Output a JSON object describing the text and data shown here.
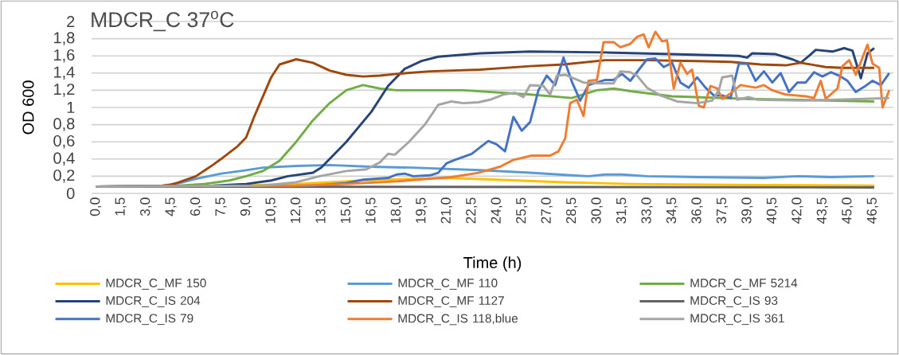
{
  "chart_data": {
    "type": "line",
    "title": "MDCR_C 37$^{o}$C",
    "xlabel": "Time (h)",
    "ylabel": "OD 600",
    "xlim": [
      -0.25,
      47.75
    ],
    "ylim": [
      0,
      2
    ],
    "xticks": [
      {
        "value": 0,
        "label": "0,0"
      },
      {
        "value": 1.5,
        "label": "1,5"
      },
      {
        "value": 3,
        "label": "3,0"
      },
      {
        "value": 4.5,
        "label": "4,5"
      },
      {
        "value": 6,
        "label": "6,0"
      },
      {
        "value": 7.5,
        "label": "7,5"
      },
      {
        "value": 9,
        "label": "9,0"
      },
      {
        "value": 10.5,
        "label": "10,5"
      },
      {
        "value": 12,
        "label": "12,0"
      },
      {
        "value": 13.5,
        "label": "13,5"
      },
      {
        "value": 15,
        "label": "15,0"
      },
      {
        "value": 16.5,
        "label": "16,5"
      },
      {
        "value": 18,
        "label": "18,0"
      },
      {
        "value": 19.5,
        "label": "19,5"
      },
      {
        "value": 21,
        "label": "21,0"
      },
      {
        "value": 22.5,
        "label": "22,5"
      },
      {
        "value": 24,
        "label": "24,0"
      },
      {
        "value": 25.5,
        "label": "25,5"
      },
      {
        "value": 27,
        "label": "27,0"
      },
      {
        "value": 28.5,
        "label": "28,5"
      },
      {
        "value": 30,
        "label": "30,0"
      },
      {
        "value": 31.5,
        "label": "31,5"
      },
      {
        "value": 33,
        "label": "33,0"
      },
      {
        "value": 34.5,
        "label": "34,5"
      },
      {
        "value": 36,
        "label": "36,0"
      },
      {
        "value": 37.5,
        "label": "37,5"
      },
      {
        "value": 39,
        "label": "39,0"
      },
      {
        "value": 40.5,
        "label": "40,5"
      },
      {
        "value": 42,
        "label": "42,0"
      },
      {
        "value": 43.5,
        "label": "43,5"
      },
      {
        "value": 45,
        "label": "45,0"
      },
      {
        "value": 46.5,
        "label": "46,5"
      }
    ],
    "yticks": [
      0,
      {
        "value": 0.2,
        "label": "0,2"
      },
      {
        "value": 0.4,
        "label": "0,4"
      },
      {
        "value": 0.6,
        "label": "0,6"
      },
      {
        "value": 0.8,
        "label": "0,8"
      },
      1,
      {
        "value": 1.2,
        "label": "1,2"
      },
      {
        "value": 1.4,
        "label": "1,4"
      },
      {
        "value": 1.6,
        "label": "1,6"
      },
      {
        "value": 1.8,
        "label": "1,8"
      },
      2
    ],
    "grid": "y",
    "legend": "bottom",
    "marker": "none",
    "line_style": "solid",
    "series": [
      {
        "name": "MDCR_C_MF 150",
        "color": "#ffc000",
        "x": [
          0,
          8,
          12,
          16,
          19,
          21,
          24,
          28,
          32,
          38,
          46.6
        ],
        "values": [
          0.08,
          0.09,
          0.11,
          0.15,
          0.17,
          0.18,
          0.16,
          0.13,
          0.11,
          0.1,
          0.09
        ]
      },
      {
        "name": "MDCR_C_MF 110",
        "color": "#5b9bd5",
        "x": [
          0,
          4,
          5,
          6,
          7.5,
          9,
          10,
          12,
          14,
          16.5,
          19,
          23,
          26,
          28.5,
          29.5,
          30.5,
          31.5,
          33,
          36,
          40,
          42,
          44,
          46.6
        ],
        "values": [
          0.08,
          0.09,
          0.12,
          0.17,
          0.23,
          0.27,
          0.3,
          0.32,
          0.33,
          0.31,
          0.3,
          0.27,
          0.24,
          0.21,
          0.2,
          0.22,
          0.22,
          0.2,
          0.19,
          0.18,
          0.2,
          0.19,
          0.2
        ]
      },
      {
        "name": "MDCR_C_MF 5214",
        "color": "#70ad47",
        "x": [
          0,
          5,
          6.5,
          8,
          9,
          10,
          11,
          12,
          13,
          14,
          15,
          16,
          17,
          18,
          22,
          26,
          28.5,
          30,
          31,
          32,
          34.5,
          39,
          46.6
        ],
        "values": [
          0.08,
          0.09,
          0.11,
          0.15,
          0.2,
          0.26,
          0.38,
          0.6,
          0.85,
          1.05,
          1.2,
          1.26,
          1.22,
          1.2,
          1.2,
          1.15,
          1.11,
          1.2,
          1.22,
          1.19,
          1.13,
          1.1,
          1.07
        ]
      },
      {
        "name": "MDCR_C_IS 204",
        "color": "#264478",
        "x": [
          0,
          7,
          9,
          10.5,
          11.5,
          13,
          13.5,
          14,
          15,
          16.5,
          17.5,
          18.5,
          19.5,
          20.5,
          23,
          26,
          30.5,
          34.5,
          38.5,
          39,
          39.3,
          40.7,
          41.7,
          42.2,
          42.7,
          43.1,
          44.1,
          44.8,
          45.3,
          45.8,
          46.2,
          46.6
        ],
        "values": [
          0.08,
          0.09,
          0.11,
          0.15,
          0.2,
          0.24,
          0.3,
          0.4,
          0.6,
          0.95,
          1.25,
          1.45,
          1.54,
          1.59,
          1.63,
          1.65,
          1.64,
          1.62,
          1.6,
          1.58,
          1.63,
          1.62,
          1.56,
          1.52,
          1.6,
          1.67,
          1.65,
          1.69,
          1.66,
          1.34,
          1.63,
          1.69
        ]
      },
      {
        "name": "MDCR_C_MF 1127",
        "color": "#9e480e",
        "x": [
          0,
          3.5,
          4.5,
          5,
          6,
          7,
          7.5,
          8.5,
          9,
          9.5,
          10.5,
          11,
          12,
          13,
          14,
          15,
          16,
          17,
          18,
          20,
          23,
          26,
          28,
          30.5,
          33,
          36,
          38,
          39.8,
          41.3,
          42.2,
          43.7,
          44.7,
          46.6
        ],
        "values": [
          0.08,
          0.08,
          0.1,
          0.13,
          0.2,
          0.33,
          0.4,
          0.55,
          0.65,
          0.9,
          1.35,
          1.5,
          1.56,
          1.52,
          1.43,
          1.38,
          1.36,
          1.37,
          1.39,
          1.42,
          1.44,
          1.48,
          1.5,
          1.55,
          1.55,
          1.54,
          1.53,
          1.5,
          1.49,
          1.52,
          1.47,
          1.46,
          1.46
        ]
      },
      {
        "name": "MDCR_C_IS 93",
        "color": "#636363",
        "x": [
          0,
          46.6
        ],
        "values": [
          0.08,
          0.07
        ]
      },
      {
        "name": "MDCR_C_IS 79",
        "color": "#4472c4",
        "x": [
          0,
          13,
          15,
          16,
          17.5,
          18,
          18.5,
          19,
          20,
          20.5,
          21,
          21.5,
          22.5,
          23.5,
          24,
          24.5,
          25,
          25.5,
          26,
          26.5,
          27,
          27.5,
          28,
          28.5,
          29,
          29.5,
          30.5,
          31,
          31.5,
          32,
          33,
          33.5,
          34,
          34.5,
          35,
          35.5,
          36,
          36.5,
          37,
          37.5,
          38,
          38.5,
          39,
          39.5,
          40,
          40.5,
          41,
          41.5,
          42,
          42.5,
          43,
          43.5,
          44,
          44.5,
          45,
          45.5,
          46,
          46.5,
          47,
          47.5
        ],
        "values": [
          0.08,
          0.09,
          0.12,
          0.16,
          0.18,
          0.22,
          0.23,
          0.2,
          0.21,
          0.24,
          0.35,
          0.39,
          0.46,
          0.61,
          0.57,
          0.49,
          0.89,
          0.73,
          0.83,
          1.2,
          1.37,
          1.26,
          1.58,
          1.3,
          1.08,
          1.26,
          1.32,
          1.32,
          1.39,
          1.31,
          1.56,
          1.57,
          1.47,
          1.52,
          1.29,
          1.23,
          1.35,
          1.23,
          1.14,
          1.14,
          1.11,
          1.51,
          1.51,
          1.31,
          1.42,
          1.29,
          1.4,
          1.18,
          1.29,
          1.29,
          1.41,
          1.36,
          1.41,
          1.37,
          1.31,
          1.18,
          1.24,
          1.31,
          1.26,
          1.4
        ]
      },
      {
        "name": "MDCR_C_IS 118,blue",
        "color": "#ed7d31",
        "x": [
          0,
          12,
          15,
          18,
          21.3,
          22.9,
          24.2,
          25,
          26.1,
          27.2,
          27.7,
          28.1,
          28.4,
          28.8,
          29.2,
          29.5,
          30,
          30.4,
          31,
          31.4,
          32,
          32.4,
          32.8,
          33.1,
          33.5,
          33.9,
          34.2,
          34.6,
          35,
          35.4,
          35.7,
          36.1,
          36.4,
          36.8,
          37.2,
          37.5,
          37.9,
          38.6,
          39.5,
          40,
          40.5,
          41.3,
          41.9,
          42.5,
          43,
          43.4,
          43.7,
          44.4,
          44.7,
          45.1,
          45.5,
          46.2,
          46.5,
          46.9,
          47.1,
          47.5
        ],
        "values": [
          0.08,
          0.09,
          0.11,
          0.14,
          0.19,
          0.24,
          0.31,
          0.39,
          0.44,
          0.44,
          0.49,
          0.64,
          1.05,
          1.09,
          0.9,
          1.31,
          1.32,
          1.76,
          1.76,
          1.7,
          1.74,
          1.82,
          1.85,
          1.7,
          1.88,
          1.77,
          1.78,
          1.22,
          1.52,
          1.39,
          1.44,
          1.02,
          1.0,
          1.25,
          1.22,
          1.1,
          1.15,
          1.26,
          1.23,
          1.26,
          1.2,
          1.15,
          1.14,
          1.13,
          1.11,
          1.31,
          1.1,
          1.22,
          1.48,
          1.55,
          1.38,
          1.73,
          1.51,
          1.46,
          1.0,
          1.2
        ]
      },
      {
        "name": "MDCR_C_IS 361",
        "color": "#a5a5a5",
        "x": [
          0,
          10,
          12,
          13.4,
          15,
          16.2,
          17,
          17.5,
          17.9,
          18.7,
          19.7,
          20.5,
          21.3,
          22,
          22.9,
          23.6,
          24.4,
          25.1,
          25.6,
          26,
          26.8,
          27.2,
          27.6,
          28.1,
          29.2,
          30.3,
          31,
          31.4,
          32,
          32.4,
          33,
          33.8,
          34.8,
          36,
          36.9,
          37.3,
          37.5,
          38.1,
          38.4,
          39.1,
          39.6,
          42.3,
          46,
          47.5
        ],
        "values": [
          0.08,
          0.09,
          0.13,
          0.2,
          0.26,
          0.28,
          0.36,
          0.46,
          0.45,
          0.59,
          0.8,
          1.03,
          1.07,
          1.05,
          1.06,
          1.09,
          1.15,
          1.17,
          1.12,
          1.26,
          1.25,
          1.15,
          1.37,
          1.38,
          1.29,
          1.28,
          1.28,
          1.42,
          1.41,
          1.37,
          1.23,
          1.14,
          1.07,
          1.05,
          1.08,
          1.2,
          1.35,
          1.37,
          1.09,
          1.12,
          1.09,
          1.08,
          1.1,
          1.11
        ]
      }
    ]
  }
}
